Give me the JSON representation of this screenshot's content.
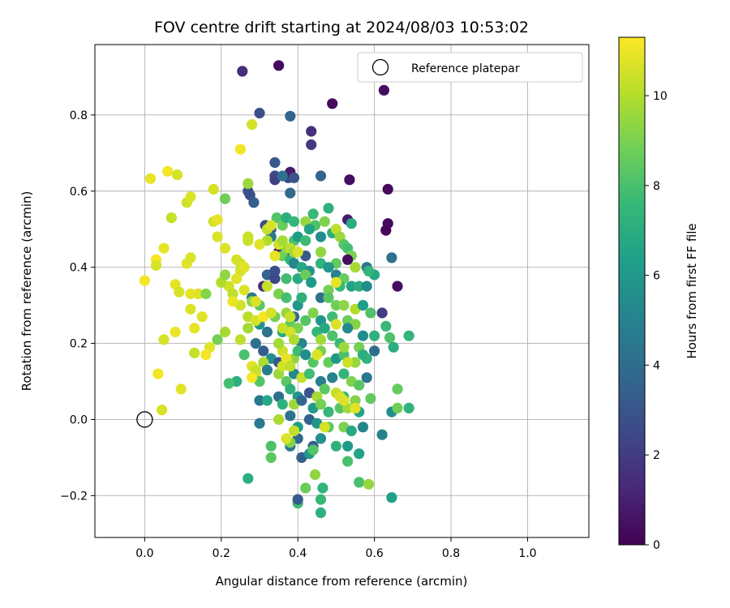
{
  "chart_data": {
    "type": "scatter",
    "title": "FOV centre drift starting at 2024/08/03 10:53:02",
    "xlabel": "Angular distance from reference (arcmin)",
    "ylabel": "Rotation from reference (arcmin)",
    "xlim": [
      -0.13,
      1.16
    ],
    "ylim": [
      -0.31,
      0.985
    ],
    "x_ticks": [
      0.0,
      0.2,
      0.4,
      0.6,
      0.8,
      1.0
    ],
    "x_tick_labels": [
      "0.0",
      "0.2",
      "0.4",
      "0.6",
      "0.8",
      "1.0"
    ],
    "y_ticks": [
      -0.2,
      0.0,
      0.2,
      0.4,
      0.6,
      0.8
    ],
    "y_tick_labels": [
      "−0.2",
      "0.0",
      "0.2",
      "0.4",
      "0.6",
      "0.8"
    ],
    "grid": true,
    "legend_position": "top-right",
    "legend_entries": [
      "Reference platepar"
    ],
    "reference_point": {
      "label": "Reference platepar",
      "x": 0.0,
      "y": 0.0
    },
    "colorbar": {
      "label": "Hours from first FF file",
      "colormap": "viridis",
      "range": [
        0,
        11.3
      ],
      "ticks": [
        0,
        2,
        4,
        6,
        8,
        10
      ],
      "tick_labels": [
        "0",
        "2",
        "4",
        "6",
        "8",
        "10"
      ]
    },
    "colormap_stops": [
      "#440154",
      "#482878",
      "#3e4989",
      "#31688e",
      "#26828e",
      "#1f9e89",
      "#35b779",
      "#6ece58",
      "#b5de2b",
      "#fde725"
    ],
    "points": [
      [
        0.35,
        0.93,
        0.3
      ],
      [
        0.255,
        0.915,
        1.5
      ],
      [
        0.49,
        0.83,
        0.3
      ],
      [
        0.625,
        0.865,
        0.4
      ],
      [
        0.3,
        0.805,
        2.8
      ],
      [
        0.38,
        0.797,
        3.6
      ],
      [
        0.435,
        0.757,
        1.6
      ],
      [
        0.435,
        0.722,
        1.9
      ],
      [
        0.34,
        0.675,
        3.1
      ],
      [
        0.34,
        0.64,
        2.5
      ],
      [
        0.34,
        0.63,
        2.2
      ],
      [
        0.375,
        0.635,
        2.4
      ],
      [
        0.38,
        0.65,
        0.8
      ],
      [
        0.36,
        0.64,
        4.2
      ],
      [
        0.39,
        0.635,
        2.9
      ],
      [
        0.46,
        0.64,
        3.6
      ],
      [
        0.535,
        0.63,
        0.4
      ],
      [
        0.635,
        0.605,
        0.3
      ],
      [
        0.27,
        0.6,
        3.0
      ],
      [
        0.275,
        0.59,
        2.7
      ],
      [
        0.285,
        0.57,
        3.4
      ],
      [
        0.38,
        0.595,
        3.9
      ],
      [
        0.48,
        0.555,
        7.2
      ],
      [
        0.44,
        0.54,
        7.6
      ],
      [
        0.53,
        0.525,
        0.8
      ],
      [
        0.54,
        0.515,
        7.0
      ],
      [
        0.635,
        0.515,
        0.3
      ],
      [
        0.63,
        0.497,
        0.2
      ],
      [
        0.315,
        0.51,
        2.5
      ],
      [
        0.33,
        0.5,
        3.3
      ],
      [
        0.345,
        0.53,
        8.2
      ],
      [
        0.36,
        0.51,
        8.7
      ],
      [
        0.37,
        0.53,
        7.1
      ],
      [
        0.39,
        0.52,
        7.5
      ],
      [
        0.42,
        0.52,
        9.5
      ],
      [
        0.445,
        0.51,
        8.1
      ],
      [
        0.47,
        0.52,
        9.1
      ],
      [
        0.43,
        0.5,
        6.5
      ],
      [
        0.46,
        0.48,
        5.5
      ],
      [
        0.49,
        0.49,
        7.0
      ],
      [
        0.5,
        0.5,
        10.2
      ],
      [
        0.51,
        0.48,
        9.6
      ],
      [
        0.33,
        0.48,
        4.5
      ],
      [
        0.35,
        0.44,
        0.5
      ],
      [
        0.375,
        0.43,
        1.2
      ],
      [
        0.39,
        0.47,
        8.0
      ],
      [
        0.4,
        0.48,
        6.2
      ],
      [
        0.42,
        0.47,
        7.7
      ],
      [
        0.42,
        0.43,
        3.2
      ],
      [
        0.52,
        0.46,
        8.3
      ],
      [
        0.53,
        0.45,
        7.9
      ],
      [
        0.54,
        0.43,
        9.0
      ],
      [
        0.53,
        0.42,
        0.4
      ],
      [
        0.645,
        0.425,
        4.2
      ],
      [
        0.36,
        0.43,
        8.8
      ],
      [
        0.37,
        0.45,
        9.3
      ],
      [
        0.38,
        0.42,
        7.4
      ],
      [
        0.39,
        0.41,
        5.2
      ],
      [
        0.41,
        0.4,
        6.7
      ],
      [
        0.43,
        0.39,
        5.8
      ],
      [
        0.46,
        0.41,
        7.3
      ],
      [
        0.5,
        0.41,
        8.5
      ],
      [
        0.48,
        0.4,
        6.0
      ],
      [
        0.5,
        0.38,
        5.1
      ],
      [
        0.52,
        0.37,
        8.6
      ],
      [
        0.55,
        0.4,
        9.8
      ],
      [
        0.58,
        0.4,
        4.5
      ],
      [
        0.6,
        0.38,
        6.8
      ],
      [
        0.585,
        0.39,
        7.5
      ],
      [
        0.66,
        0.35,
        0.4
      ],
      [
        0.32,
        0.38,
        3.6
      ],
      [
        0.34,
        0.37,
        2.4
      ],
      [
        0.34,
        0.39,
        2.7
      ],
      [
        0.37,
        0.37,
        7.8
      ],
      [
        0.4,
        0.37,
        6.9
      ],
      [
        0.42,
        0.38,
        8.7
      ],
      [
        0.435,
        0.36,
        6.1
      ],
      [
        0.48,
        0.34,
        8.9
      ],
      [
        0.5,
        0.36,
        9.7
      ],
      [
        0.51,
        0.35,
        7.6
      ],
      [
        0.54,
        0.35,
        6.5
      ],
      [
        0.56,
        0.35,
        7.0
      ],
      [
        0.58,
        0.35,
        5.5
      ],
      [
        0.31,
        0.35,
        1.5
      ],
      [
        0.35,
        0.33,
        9.0
      ],
      [
        0.37,
        0.32,
        7.9
      ],
      [
        0.4,
        0.3,
        5.9
      ],
      [
        0.41,
        0.32,
        7.2
      ],
      [
        0.46,
        0.32,
        4.2
      ],
      [
        0.48,
        0.32,
        8.4
      ],
      [
        0.5,
        0.3,
        8.8
      ],
      [
        0.52,
        0.3,
        9.3
      ],
      [
        0.55,
        0.29,
        10.0
      ],
      [
        0.57,
        0.3,
        6.3
      ],
      [
        0.59,
        0.28,
        8.1
      ],
      [
        0.62,
        0.28,
        2.0
      ],
      [
        0.28,
        0.32,
        4.5
      ],
      [
        0.3,
        0.3,
        8.4
      ],
      [
        0.33,
        0.28,
        7.3
      ],
      [
        0.34,
        0.27,
        8.9
      ],
      [
        0.37,
        0.28,
        9.5
      ],
      [
        0.39,
        0.27,
        3.9
      ],
      [
        0.42,
        0.26,
        8.2
      ],
      [
        0.44,
        0.28,
        9.1
      ],
      [
        0.46,
        0.26,
        5.9
      ],
      [
        0.49,
        0.27,
        7.8
      ],
      [
        0.53,
        0.26,
        8.7
      ],
      [
        0.55,
        0.25,
        9.2
      ],
      [
        0.57,
        0.22,
        5.5
      ],
      [
        0.6,
        0.22,
        7.2
      ],
      [
        0.63,
        0.245,
        7.6
      ],
      [
        0.64,
        0.215,
        8.1
      ],
      [
        0.69,
        0.22,
        7.4
      ],
      [
        0.3,
        0.25,
        5.8
      ],
      [
        0.32,
        0.23,
        4.3
      ],
      [
        0.36,
        0.23,
        6.9
      ],
      [
        0.38,
        0.25,
        8.5
      ],
      [
        0.4,
        0.24,
        9.0
      ],
      [
        0.41,
        0.2,
        5.1
      ],
      [
        0.45,
        0.23,
        7.5
      ],
      [
        0.46,
        0.21,
        9.7
      ],
      [
        0.47,
        0.24,
        6.8
      ],
      [
        0.49,
        0.22,
        8.1
      ],
      [
        0.51,
        0.2,
        7.6
      ],
      [
        0.53,
        0.24,
        5.4
      ],
      [
        0.56,
        0.19,
        8.9
      ],
      [
        0.58,
        0.16,
        7.3
      ],
      [
        0.6,
        0.18,
        4.0
      ],
      [
        0.65,
        0.19,
        7.0
      ],
      [
        0.26,
        0.17,
        8.0
      ],
      [
        0.29,
        0.2,
        4.2
      ],
      [
        0.31,
        0.18,
        3.3
      ],
      [
        0.33,
        0.16,
        5.6
      ],
      [
        0.35,
        0.15,
        3.1
      ],
      [
        0.36,
        0.18,
        10.5
      ],
      [
        0.39,
        0.16,
        9.4
      ],
      [
        0.4,
        0.18,
        7.7
      ],
      [
        0.42,
        0.17,
        5.5
      ],
      [
        0.44,
        0.15,
        8.3
      ],
      [
        0.46,
        0.18,
        9.0
      ],
      [
        0.48,
        0.15,
        8.6
      ],
      [
        0.5,
        0.16,
        5.9
      ],
      [
        0.52,
        0.17,
        8.0
      ],
      [
        0.55,
        0.15,
        9.5
      ],
      [
        0.57,
        0.17,
        7.1
      ],
      [
        0.31,
        0.15,
        9.9
      ],
      [
        0.28,
        0.14,
        10.8
      ],
      [
        0.29,
        0.12,
        10.6
      ],
      [
        0.3,
        0.1,
        8.2
      ],
      [
        0.32,
        0.13,
        4.7
      ],
      [
        0.35,
        0.12,
        9.6
      ],
      [
        0.37,
        0.1,
        8.4
      ],
      [
        0.39,
        0.12,
        5.3
      ],
      [
        0.41,
        0.11,
        10.3
      ],
      [
        0.43,
        0.12,
        7.8
      ],
      [
        0.46,
        0.1,
        4.8
      ],
      [
        0.49,
        0.11,
        5.0
      ],
      [
        0.52,
        0.12,
        7.4
      ],
      [
        0.54,
        0.1,
        9.1
      ],
      [
        0.56,
        0.09,
        8.3
      ],
      [
        0.58,
        0.11,
        4.4
      ],
      [
        0.24,
        0.1,
        7.1
      ],
      [
        0.22,
        0.095,
        7.9
      ],
      [
        0.38,
        0.08,
        7.2
      ],
      [
        0.4,
        0.06,
        5.9
      ],
      [
        0.43,
        0.07,
        3.0
      ],
      [
        0.45,
        0.06,
        9.8
      ],
      [
        0.47,
        0.08,
        8.4
      ],
      [
        0.5,
        0.07,
        10.3
      ],
      [
        0.52,
        0.06,
        7.7
      ],
      [
        0.55,
        0.05,
        9.2
      ],
      [
        0.59,
        0.055,
        8.5
      ],
      [
        0.66,
        0.08,
        8.6
      ],
      [
        0.3,
        0.05,
        4.5
      ],
      [
        0.32,
        0.05,
        6.7
      ],
      [
        0.35,
        0.06,
        4.1
      ],
      [
        0.36,
        0.04,
        7.3
      ],
      [
        0.39,
        0.04,
        9.6
      ],
      [
        0.41,
        0.05,
        3.7
      ],
      [
        0.44,
        0.03,
        6.1
      ],
      [
        0.46,
        0.04,
        8.9
      ],
      [
        0.48,
        0.02,
        7.5
      ],
      [
        0.51,
        0.03,
        8.3
      ],
      [
        0.53,
        0.03,
        9.7
      ],
      [
        0.56,
        0.02,
        6.6
      ],
      [
        0.645,
        0.02,
        5.5
      ],
      [
        0.66,
        0.03,
        8.8
      ],
      [
        0.69,
        0.03,
        7.3
      ],
      [
        0.3,
        -0.01,
        4.6
      ],
      [
        0.35,
        0.0,
        9.9
      ],
      [
        0.38,
        0.01,
        4.3
      ],
      [
        0.4,
        -0.02,
        6.3
      ],
      [
        0.43,
        0.0,
        3.5
      ],
      [
        0.45,
        -0.01,
        5.9
      ],
      [
        0.48,
        -0.02,
        8.4
      ],
      [
        0.52,
        -0.02,
        9.0
      ],
      [
        0.54,
        -0.03,
        6.8
      ],
      [
        0.57,
        -0.02,
        5.1
      ],
      [
        0.62,
        -0.04,
        4.9
      ],
      [
        0.33,
        -0.07,
        8.1
      ],
      [
        0.38,
        -0.07,
        4.6
      ],
      [
        0.39,
        -0.03,
        9.7
      ],
      [
        0.4,
        -0.05,
        3.8
      ],
      [
        0.44,
        -0.07,
        3.4
      ],
      [
        0.46,
        -0.05,
        5.7
      ],
      [
        0.5,
        -0.07,
        7.2
      ],
      [
        0.53,
        -0.07,
        6.2
      ],
      [
        0.56,
        -0.09,
        6.5
      ],
      [
        0.33,
        -0.1,
        8.4
      ],
      [
        0.38,
        -0.06,
        9.2
      ],
      [
        0.41,
        -0.1,
        3.4
      ],
      [
        0.43,
        -0.09,
        6.0
      ],
      [
        0.44,
        -0.08,
        8.2
      ],
      [
        0.53,
        -0.11,
        8.0
      ],
      [
        0.27,
        -0.155,
        7.1
      ],
      [
        0.42,
        -0.18,
        8.7
      ],
      [
        0.445,
        -0.145,
        9.4
      ],
      [
        0.465,
        -0.18,
        7.4
      ],
      [
        0.56,
        -0.165,
        8.0
      ],
      [
        0.585,
        -0.17,
        9.5
      ],
      [
        0.645,
        -0.205,
        6.4
      ],
      [
        0.4,
        -0.22,
        7.8
      ],
      [
        0.4,
        -0.21,
        3.2
      ],
      [
        0.46,
        -0.21,
        7.6
      ],
      [
        0.46,
        -0.245,
        7.2
      ],
      [
        0.08,
        0.355,
        10.9
      ],
      [
        0.09,
        0.335,
        10.6
      ],
      [
        0.0,
        0.365,
        11.1
      ],
      [
        0.03,
        0.42,
        11.2
      ],
      [
        0.03,
        0.405,
        10.6
      ],
      [
        0.05,
        0.45,
        10.9
      ],
      [
        0.11,
        0.41,
        10.8
      ],
      [
        0.12,
        0.425,
        10.7
      ],
      [
        0.14,
        0.33,
        10.7
      ],
      [
        0.12,
        0.33,
        10.9
      ],
      [
        0.12,
        0.29,
        10.7
      ],
      [
        0.15,
        0.27,
        10.8
      ],
      [
        0.08,
        0.23,
        11.0
      ],
      [
        0.13,
        0.24,
        10.9
      ],
      [
        0.05,
        0.21,
        10.6
      ],
      [
        0.17,
        0.19,
        10.8
      ],
      [
        0.16,
        0.17,
        11.2
      ],
      [
        0.13,
        0.175,
        10.3
      ],
      [
        0.035,
        0.12,
        11.1
      ],
      [
        0.095,
        0.08,
        10.8
      ],
      [
        0.045,
        0.025,
        10.6
      ],
      [
        0.015,
        0.633,
        10.9
      ],
      [
        0.06,
        0.652,
        11.1
      ],
      [
        0.085,
        0.643,
        10.6
      ],
      [
        0.11,
        0.57,
        10.5
      ],
      [
        0.12,
        0.585,
        10.7
      ],
      [
        0.07,
        0.53,
        10.3
      ],
      [
        0.18,
        0.52,
        10.6
      ],
      [
        0.19,
        0.525,
        10.9
      ],
      [
        0.18,
        0.605,
        10.6
      ],
      [
        0.19,
        0.48,
        10.7
      ],
      [
        0.21,
        0.45,
        10.7
      ],
      [
        0.21,
        0.58,
        8.8
      ],
      [
        0.25,
        0.71,
        11.1
      ],
      [
        0.28,
        0.775,
        10.6
      ],
      [
        0.27,
        0.62,
        9.6
      ],
      [
        0.27,
        0.48,
        10.4
      ],
      [
        0.25,
        0.39,
        10.6
      ],
      [
        0.25,
        0.41,
        10.4
      ],
      [
        0.24,
        0.37,
        10.8
      ],
      [
        0.22,
        0.35,
        10.5
      ],
      [
        0.23,
        0.33,
        10.2
      ],
      [
        0.2,
        0.36,
        10.0
      ],
      [
        0.21,
        0.38,
        9.4
      ],
      [
        0.26,
        0.34,
        10.7
      ],
      [
        0.25,
        0.3,
        10.5
      ],
      [
        0.23,
        0.31,
        11.0
      ],
      [
        0.28,
        0.31,
        9.3
      ],
      [
        0.29,
        0.31,
        10.7
      ],
      [
        0.27,
        0.27,
        10.1
      ],
      [
        0.29,
        0.26,
        10.6
      ],
      [
        0.31,
        0.27,
        11.1
      ],
      [
        0.16,
        0.33,
        9.2
      ],
      [
        0.19,
        0.21,
        8.9
      ],
      [
        0.21,
        0.23,
        9.8
      ],
      [
        0.27,
        0.24,
        9.7
      ],
      [
        0.25,
        0.21,
        10.2
      ],
      [
        0.33,
        0.28,
        10.6
      ],
      [
        0.32,
        0.47,
        10.0
      ],
      [
        0.32,
        0.5,
        10.3
      ],
      [
        0.33,
        0.51,
        10.6
      ],
      [
        0.3,
        0.46,
        10.8
      ],
      [
        0.27,
        0.47,
        10.4
      ],
      [
        0.26,
        0.4,
        10.8
      ],
      [
        0.24,
        0.42,
        10.6
      ],
      [
        0.32,
        0.35,
        10.3
      ],
      [
        0.34,
        0.43,
        10.9
      ],
      [
        0.35,
        0.46,
        10.5
      ],
      [
        0.36,
        0.47,
        9.8
      ],
      [
        0.38,
        0.45,
        10.2
      ],
      [
        0.39,
        0.44,
        9.7
      ],
      [
        0.4,
        0.44,
        10.7
      ],
      [
        0.46,
        0.44,
        9.4
      ],
      [
        0.5,
        0.36,
        10.9
      ],
      [
        0.5,
        0.25,
        10.7
      ],
      [
        0.52,
        0.19,
        9.6
      ],
      [
        0.53,
        0.15,
        10.4
      ],
      [
        0.45,
        0.17,
        10.7
      ],
      [
        0.38,
        0.23,
        10.6
      ],
      [
        0.39,
        0.21,
        9.9
      ],
      [
        0.36,
        0.24,
        10.3
      ],
      [
        0.35,
        0.2,
        9.7
      ],
      [
        0.36,
        0.14,
        10.5
      ],
      [
        0.37,
        0.16,
        10.9
      ],
      [
        0.38,
        0.14,
        10.2
      ],
      [
        0.29,
        0.13,
        10.4
      ],
      [
        0.28,
        0.11,
        11.2
      ],
      [
        0.37,
        -0.05,
        10.7
      ],
      [
        0.39,
        -0.03,
        10.3
      ],
      [
        0.47,
        -0.02,
        10.6
      ],
      [
        0.51,
        0.06,
        10.6
      ],
      [
        0.52,
        0.05,
        10.7
      ],
      [
        0.55,
        0.03,
        10.8
      ],
      [
        0.38,
        0.27,
        10.4
      ]
    ]
  }
}
